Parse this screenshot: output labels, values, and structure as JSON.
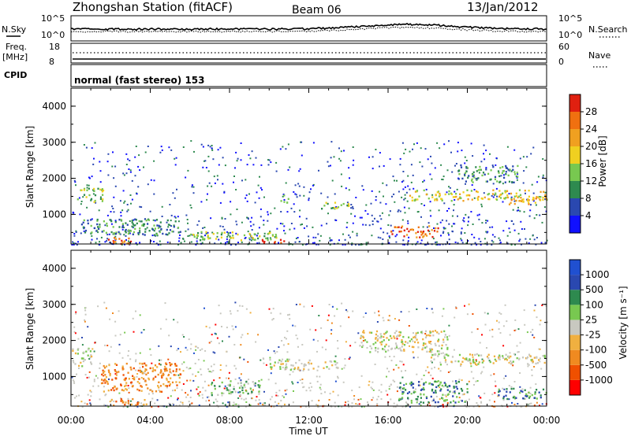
{
  "header": {
    "station": "Zhongshan Station (fitACF)",
    "beam": "Beam 06",
    "date": "13/Jan/2012"
  },
  "left_labels": {
    "nsky": "N.Sky",
    "freq": "Freq.",
    "freq_unit": "[MHz]",
    "cpid": "CPID"
  },
  "right_labels": {
    "nsearch": "N.Search",
    "nave": "Nave"
  },
  "noise_panel": {
    "left_ticks": [
      "10^5",
      "10^0"
    ],
    "right_ticks": [
      "10^5",
      "10^0"
    ]
  },
  "freq_panel": {
    "left_ticks": [
      "18",
      "8"
    ],
    "right_ticks": [
      "60",
      "0"
    ]
  },
  "cpid_text": "normal (fast stereo) 153",
  "colors": {
    "power": [
      "#1010ff",
      "#2a48b0",
      "#2e8a4f",
      "#78c850",
      "#f0d020",
      "#f0a020",
      "#f07010",
      "#e02010"
    ],
    "velocity": [
      "#ff0000",
      "#f05000",
      "#f08a20",
      "#f0b040",
      "#c8c8c0",
      "#78c850",
      "#2e8a4f",
      "#2a48b0",
      "#2050d0"
    ]
  },
  "chart_data": [
    {
      "type": "heatmap",
      "name": "power",
      "ylabel": "Slant Range [km]",
      "yticks": [
        "1000",
        "2000",
        "3000",
        "4000"
      ],
      "ylim": [
        180,
        4500
      ],
      "xlim": [
        0,
        24
      ],
      "colorbar_label": "Power [dB]",
      "colorbar_ticks": [
        "4",
        "8",
        "12",
        "16",
        "20",
        "24",
        "28"
      ],
      "colorbar_range": [
        0,
        32
      ],
      "echo_bands": [
        {
          "t0": 0.3,
          "t1": 1.6,
          "r0": 1350,
          "r1": 1750,
          "level": 3
        },
        {
          "t0": 0.5,
          "t1": 5.5,
          "r0": 450,
          "r1": 900,
          "level": 2
        },
        {
          "t0": 1.8,
          "t1": 3.6,
          "r0": 200,
          "r1": 380,
          "level": 6
        },
        {
          "t0": 6.0,
          "t1": 10.5,
          "r0": 300,
          "r1": 550,
          "level": 3
        },
        {
          "t0": 9.5,
          "t1": 10.8,
          "r0": 200,
          "r1": 320,
          "level": 7
        },
        {
          "t0": 10.5,
          "t1": 11.0,
          "r0": 1350,
          "r1": 1550,
          "level": 4
        },
        {
          "t0": 12.5,
          "t1": 14.0,
          "r0": 1150,
          "r1": 1350,
          "level": 3
        },
        {
          "t0": 16.0,
          "t1": 18.5,
          "r0": 380,
          "r1": 700,
          "level": 6
        },
        {
          "t0": 17.0,
          "t1": 24.0,
          "r0": 1400,
          "r1": 1700,
          "level": 4
        },
        {
          "t0": 19.5,
          "t1": 22.5,
          "r0": 1900,
          "r1": 2400,
          "level": 2
        },
        {
          "t0": 22.0,
          "t1": 24.0,
          "r0": 1300,
          "r1": 1500,
          "level": 5
        }
      ]
    },
    {
      "type": "heatmap",
      "name": "velocity",
      "ylabel": "Slant Range [km]",
      "yticks": [
        "1000",
        "2000",
        "3000",
        "4000"
      ],
      "ylim": [
        180,
        4500
      ],
      "xlim": [
        0,
        24
      ],
      "xticks": [
        "00:00",
        "04:00",
        "08:00",
        "12:00",
        "16:00",
        "20:00",
        "00:00"
      ],
      "xlabel": "Time UT",
      "colorbar_label": "Velocity [m s⁻¹]",
      "colorbar_ticks": [
        "-1000",
        "-500",
        "-100",
        "-25",
        "25",
        "100",
        "500",
        "1000"
      ],
      "echo_bands": [
        {
          "t0": 0.0,
          "t1": 1.0,
          "r0": 1300,
          "r1": 1800,
          "level": 4
        },
        {
          "t0": 1.5,
          "t1": 5.5,
          "r0": 600,
          "r1": 1400,
          "level": 2
        },
        {
          "t0": 2.0,
          "t1": 3.8,
          "r0": 200,
          "r1": 400,
          "level": 2
        },
        {
          "t0": 7.0,
          "t1": 9.5,
          "r0": 500,
          "r1": 900,
          "level": 5
        },
        {
          "t0": 10.0,
          "t1": 13.5,
          "r0": 1200,
          "r1": 1500,
          "level": 4
        },
        {
          "t0": 14.5,
          "t1": 19.0,
          "r0": 1700,
          "r1": 2300,
          "level": 4
        },
        {
          "t0": 16.5,
          "t1": 20.0,
          "r0": 300,
          "r1": 900,
          "level": 6
        },
        {
          "t0": 18.0,
          "t1": 24.0,
          "r0": 1350,
          "r1": 1650,
          "level": 4
        },
        {
          "t0": 21.5,
          "t1": 24.0,
          "r0": 400,
          "r1": 700,
          "level": 6
        }
      ]
    }
  ]
}
